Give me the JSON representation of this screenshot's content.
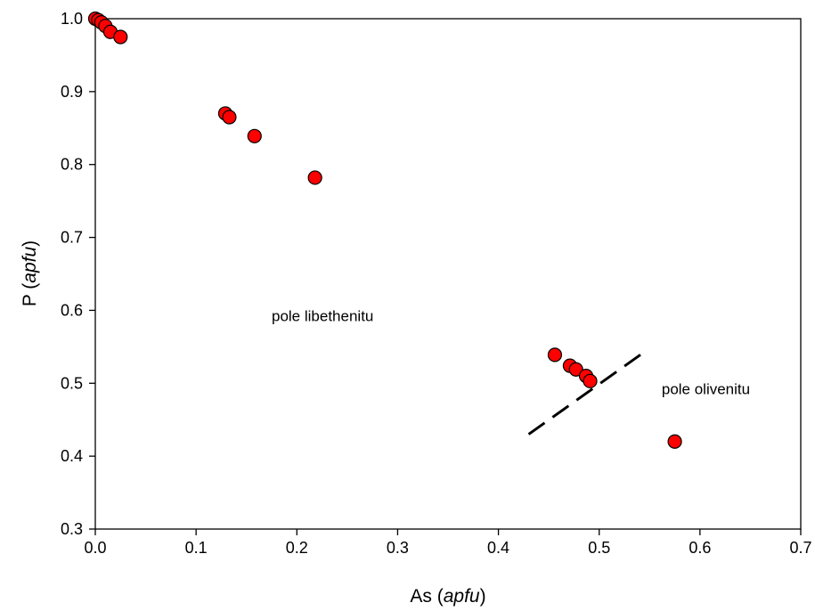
{
  "chart_data": {
    "type": "scatter",
    "title": "",
    "xlabel": {
      "main": "As",
      "unit": "apfu"
    },
    "ylabel": {
      "main": "P",
      "unit": "apfu"
    },
    "xlim": [
      0.0,
      0.7
    ],
    "ylim": [
      0.3,
      1.0
    ],
    "x_ticks": [
      "0.0",
      "0.1",
      "0.2",
      "0.3",
      "0.4",
      "0.5",
      "0.6",
      "0.7"
    ],
    "y_ticks": [
      "0.3",
      "0.4",
      "0.5",
      "0.6",
      "0.7",
      "0.8",
      "0.9",
      "1.0"
    ],
    "grid": false,
    "marker_color": "#ff0000",
    "marker_edge_color": "#000000",
    "series": [
      {
        "points": [
          {
            "x": 0.0,
            "y": 1.0
          },
          {
            "x": 0.003,
            "y": 0.998
          },
          {
            "x": 0.006,
            "y": 0.995
          },
          {
            "x": 0.01,
            "y": 0.99
          },
          {
            "x": 0.015,
            "y": 0.982
          },
          {
            "x": 0.025,
            "y": 0.975
          },
          {
            "x": 0.129,
            "y": 0.87
          },
          {
            "x": 0.133,
            "y": 0.865
          },
          {
            "x": 0.158,
            "y": 0.839
          },
          {
            "x": 0.218,
            "y": 0.782
          },
          {
            "x": 0.456,
            "y": 0.539
          },
          {
            "x": 0.471,
            "y": 0.524
          },
          {
            "x": 0.477,
            "y": 0.519
          },
          {
            "x": 0.487,
            "y": 0.51
          },
          {
            "x": 0.491,
            "y": 0.503
          },
          {
            "x": 0.575,
            "y": 0.42
          }
        ]
      }
    ],
    "boundary_line": {
      "style": "dashed",
      "color": "#000000",
      "points": [
        {
          "x": 0.43,
          "y": 0.43
        },
        {
          "x": 0.548,
          "y": 0.546
        }
      ]
    },
    "annotations": [
      {
        "text": "pole libethenitu",
        "x": 0.175,
        "y": 0.585
      },
      {
        "text": "pole olivenitu",
        "x": 0.562,
        "y": 0.485
      }
    ]
  }
}
